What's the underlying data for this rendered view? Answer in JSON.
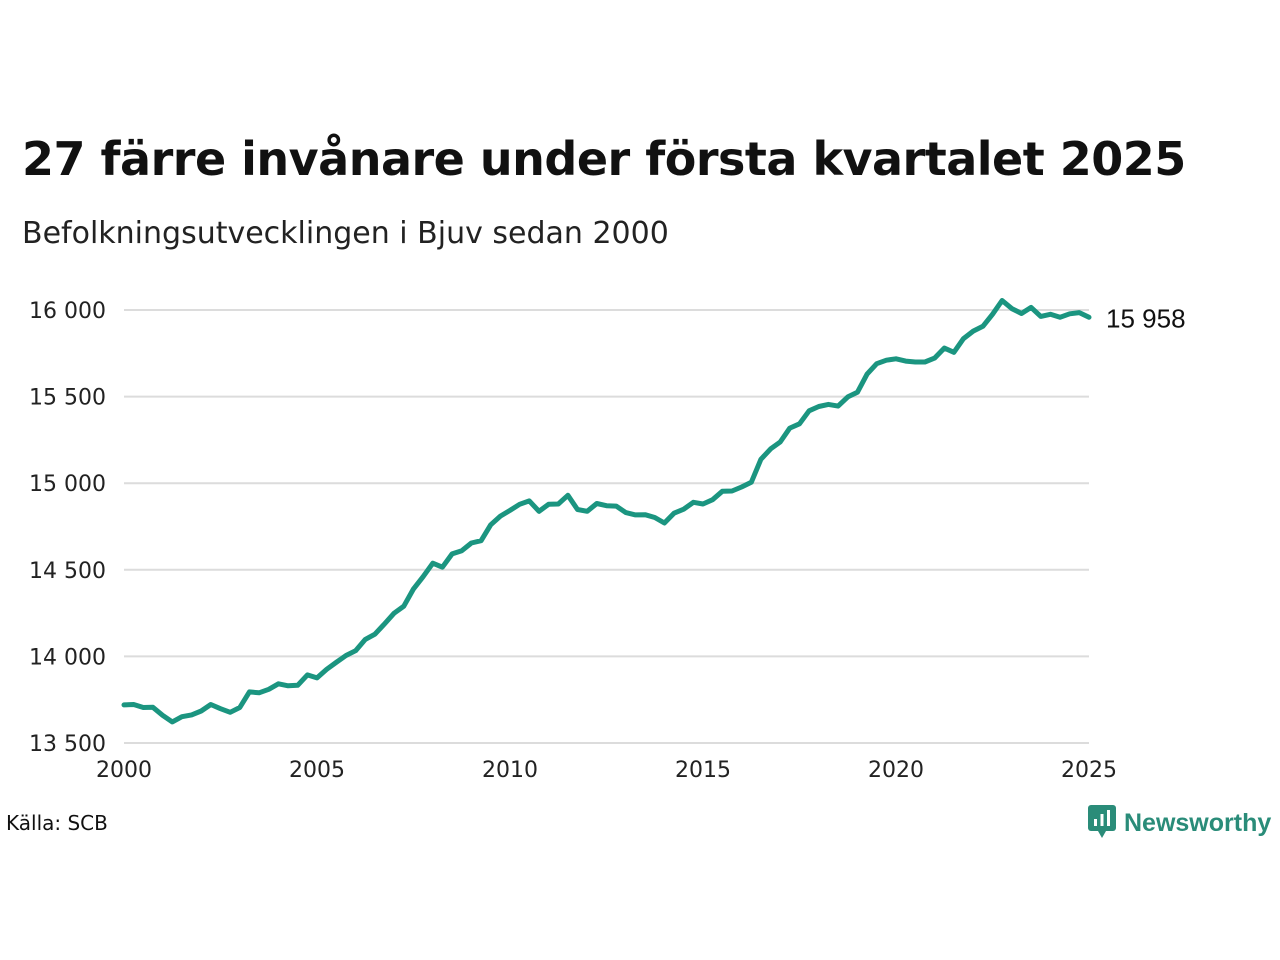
{
  "title": "27 färre invånare under första kvartalet 2025",
  "subtitle": "Befolkningsutvecklingen i Bjuv sedan 2000",
  "source": "Källa: SCB",
  "brand": {
    "name": "Newsworthy",
    "icon": "newsworthy-logo-icon",
    "color": "#2a8c79"
  },
  "chart_data": {
    "type": "line",
    "line_color": "#1b9580",
    "grid": true,
    "xlim": [
      2000,
      2025
    ],
    "ylim": [
      13500,
      16000
    ],
    "x_ticks": [
      2000,
      2005,
      2010,
      2015,
      2020,
      2025
    ],
    "x_tick_labels": [
      "2000",
      "2005",
      "2010",
      "2015",
      "2020",
      "2025"
    ],
    "y_ticks": [
      13500,
      14000,
      14500,
      15000,
      15500,
      16000
    ],
    "y_tick_labels": [
      "13 500",
      "14 000",
      "14 500",
      "15 000",
      "15 500",
      "16 000"
    ],
    "end_label": "15 958",
    "series": [
      {
        "x": [
          2000.0,
          2000.25,
          2000.5,
          2000.75,
          2001.0,
          2001.25,
          2001.5,
          2001.75,
          2002.0,
          2002.25,
          2002.5,
          2002.75,
          2003.0,
          2003.25,
          2003.5,
          2003.75,
          2004.0,
          2004.25,
          2004.5,
          2004.75,
          2005.0,
          2005.25,
          2005.5,
          2005.75,
          2006.0,
          2006.25,
          2006.5,
          2006.75,
          2007.0,
          2007.25,
          2007.5,
          2007.75,
          2008.0,
          2008.25,
          2008.5,
          2008.75,
          2009.0,
          2009.25,
          2009.5,
          2009.75,
          2010.0,
          2010.25,
          2010.5,
          2010.75,
          2011.0,
          2011.25,
          2011.5,
          2011.75,
          2012.0,
          2012.25,
          2012.5,
          2012.75,
          2013.0,
          2013.25,
          2013.5,
          2013.75,
          2014.0,
          2014.25,
          2014.5,
          2014.75,
          2015.0,
          2015.25,
          2015.5,
          2015.75,
          2016.0,
          2016.25,
          2016.5,
          2016.75,
          2017.0,
          2017.25,
          2017.5,
          2017.75,
          2018.0,
          2018.25,
          2018.5,
          2018.75,
          2019.0,
          2019.25,
          2019.5,
          2019.75,
          2020.0,
          2020.25,
          2020.5,
          2020.75,
          2021.0,
          2021.25,
          2021.5,
          2021.75,
          2022.0,
          2022.25,
          2022.5,
          2022.75,
          2023.0,
          2023.25,
          2023.5,
          2023.75,
          2024.0,
          2024.25,
          2024.5,
          2024.75,
          2025.0
        ],
        "values": [
          13720,
          13722,
          13705,
          13706,
          13660,
          13622,
          13652,
          13662,
          13685,
          13722,
          13698,
          13677,
          13705,
          13795,
          13790,
          13810,
          13842,
          13830,
          13833,
          13893,
          13876,
          13925,
          13966,
          14005,
          14033,
          14098,
          14128,
          14188,
          14250,
          14290,
          14390,
          14460,
          14538,
          14515,
          14592,
          14610,
          14655,
          14668,
          14760,
          14810,
          14843,
          14878,
          14898,
          14838,
          14878,
          14880,
          14930,
          14848,
          14838,
          14883,
          14870,
          14868,
          14830,
          14817,
          14818,
          14802,
          14770,
          14827,
          14850,
          14890,
          14880,
          14905,
          14953,
          14955,
          14978,
          15005,
          15138,
          15198,
          15238,
          15318,
          15343,
          15418,
          15443,
          15455,
          15445,
          15498,
          15525,
          15630,
          15690,
          15710,
          15718,
          15705,
          15700,
          15700,
          15722,
          15780,
          15756,
          15835,
          15878,
          15906,
          15975,
          16055,
          16008,
          15980,
          16015,
          15963,
          15975,
          15958,
          15978,
          15985,
          15958
        ]
      }
    ]
  }
}
